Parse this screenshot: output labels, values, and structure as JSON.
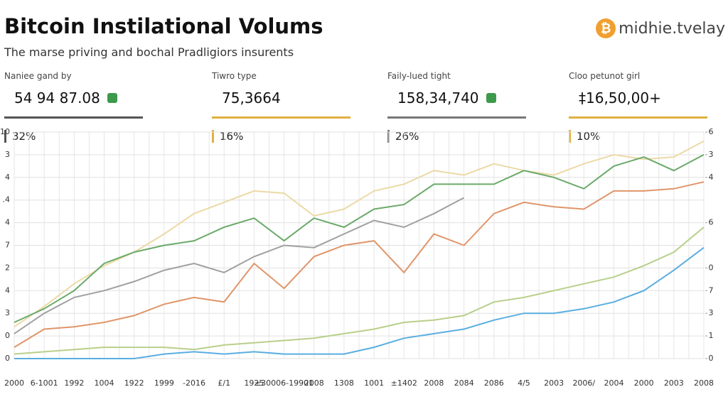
{
  "header": {
    "title": "Bitcoin Instilational Volums",
    "subtitle": "The marse priving and bochal Pradligiors insurents",
    "brand": "midhie.tvelay"
  },
  "kpis": [
    {
      "label": "Naniee gand by",
      "value": "54 94 87.08",
      "change": "32%",
      "color": "#555555"
    },
    {
      "label": "Tiwro type",
      "value": "75,3664",
      "change": "16%",
      "color": "#e0b040"
    },
    {
      "label": "Faily-lued tight",
      "value": "158,34,740",
      "change": "26%",
      "color": "#777777"
    },
    {
      "label": "Cloo petunot girl",
      "value": "‡16,50,00+",
      "change": "10%",
      "color": "#e0b040"
    }
  ],
  "chart_data": {
    "type": "line",
    "categories": [
      "2000",
      "6-1001",
      "1992",
      "1004",
      "1922",
      "1999",
      "-2016",
      "£/1",
      "1925",
      "±30006-19901",
      "2008",
      "1308",
      "1001",
      "±1402",
      "2008",
      "2084",
      "2086",
      "4/5",
      "2003",
      "2006/",
      "2004",
      "2000",
      "2003",
      "2008"
    ],
    "ylim": [
      0,
      10
    ],
    "yticks": [
      {
        "value": 10,
        "label": "10"
      },
      {
        "value": 9,
        "label": "3"
      },
      {
        "value": 8,
        "label": "4"
      },
      {
        "value": 7,
        "label": ".4"
      },
      {
        "value": 6,
        "label": "4"
      },
      {
        "value": 5,
        "label": "7"
      },
      {
        "value": 4,
        "label": "2"
      },
      {
        "value": 3,
        "label": "4"
      },
      {
        "value": 2,
        "label": "3"
      },
      {
        "value": 1,
        "label": "0"
      },
      0
    ],
    "y2lim": [
      0,
      10
    ],
    "y2ticks": [
      {
        "value": 10,
        "label": "6"
      },
      {
        "value": 9,
        "label": "3"
      },
      {
        "value": 8,
        "label": "4"
      },
      {
        "value": 6,
        "label": "6"
      },
      {
        "value": 4,
        "label": "0"
      },
      {
        "value": 3,
        "label": "7"
      },
      {
        "value": 2,
        "label": "3"
      },
      {
        "value": 1,
        "label": "1"
      },
      0
    ],
    "grid": true,
    "series": [
      {
        "color": "#ecd9a6",
        "values": [
          1.4,
          2.3,
          3.3,
          4.1,
          4.7,
          5.5,
          6.4,
          6.9,
          7.4,
          7.3,
          6.3,
          6.6,
          7.4,
          7.7,
          8.3,
          8.1,
          8.6,
          8.3,
          8.1,
          8.6,
          9.0,
          8.8,
          8.9,
          9.6
        ]
      },
      {
        "color": "#6aaa6a",
        "values": [
          1.6,
          2.2,
          3.0,
          4.2,
          4.7,
          5.0,
          5.2,
          5.8,
          6.2,
          5.2,
          6.2,
          5.8,
          6.6,
          6.8,
          7.7,
          7.7,
          7.7,
          8.3,
          8.0,
          7.5,
          8.5,
          8.9,
          8.3,
          9.0
        ]
      },
      {
        "color": "#a0a0a0",
        "values": [
          1.1,
          2.0,
          2.7,
          3.0,
          3.4,
          3.9,
          4.2,
          3.8,
          4.5,
          5.0,
          4.9,
          5.5,
          6.1,
          5.8,
          6.4,
          7.1,
          null,
          null,
          null,
          null,
          null,
          null,
          null,
          null
        ]
      },
      {
        "color": "#e0956a",
        "values": [
          0.5,
          1.3,
          1.4,
          1.6,
          1.9,
          2.4,
          2.7,
          2.5,
          4.2,
          3.1,
          4.5,
          5.0,
          5.2,
          3.8,
          5.5,
          5.0,
          6.4,
          6.9,
          6.7,
          6.6,
          7.4,
          7.4,
          7.5,
          7.8
        ]
      },
      {
        "color": "#b8cf8a",
        "values": [
          0.2,
          0.3,
          0.4,
          0.5,
          0.5,
          0.5,
          0.4,
          0.6,
          0.7,
          0.8,
          0.9,
          1.1,
          1.3,
          1.6,
          1.7,
          1.9,
          2.5,
          2.7,
          3.0,
          3.3,
          3.6,
          4.1,
          4.7,
          5.8
        ]
      },
      {
        "color": "#5aaee0",
        "values": [
          0,
          0,
          0,
          0,
          0,
          0.2,
          0.3,
          0.2,
          0.3,
          0.2,
          0.2,
          0.2,
          0.5,
          0.9,
          1.1,
          1.3,
          1.7,
          2.0,
          2.0,
          2.2,
          2.5,
          3.0,
          3.9,
          4.9
        ]
      }
    ]
  }
}
